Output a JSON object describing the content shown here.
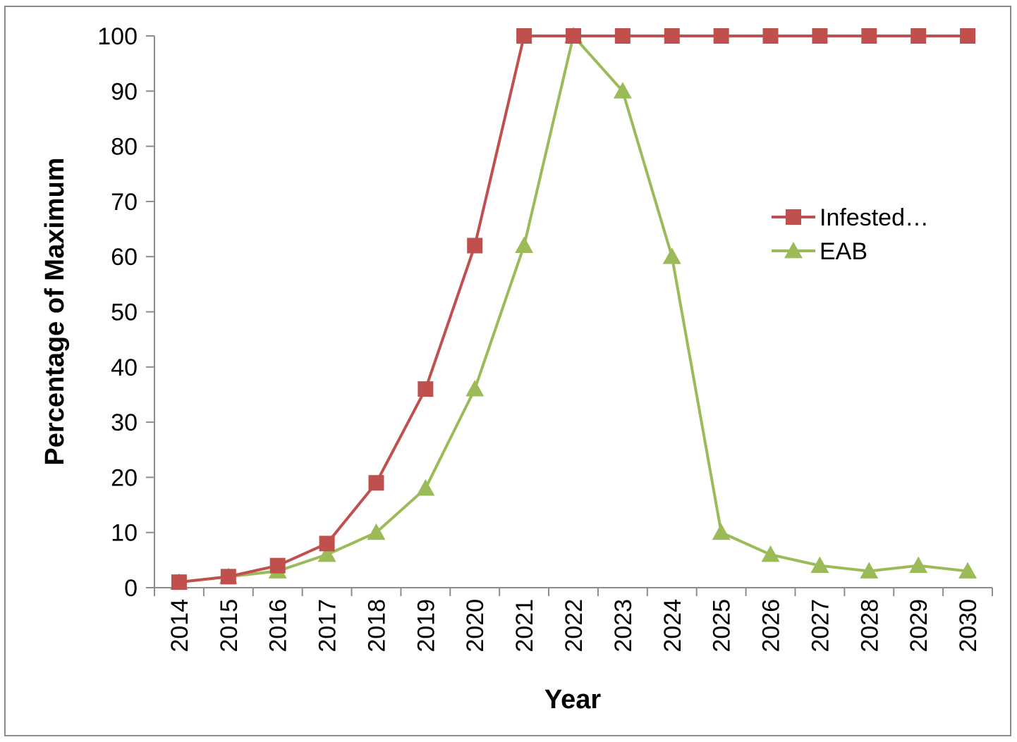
{
  "chart_data": {
    "type": "line",
    "title": "",
    "xlabel": "Year",
    "ylabel": "Percentage of Maximum",
    "ylim": [
      0,
      100
    ],
    "yticks": [
      0,
      10,
      20,
      30,
      40,
      50,
      60,
      70,
      80,
      90,
      100
    ],
    "categories": [
      "2014",
      "2015",
      "2016",
      "2017",
      "2018",
      "2019",
      "2020",
      "2021",
      "2022",
      "2023",
      "2024",
      "2025",
      "2026",
      "2027",
      "2028",
      "2029",
      "2030"
    ],
    "grid": false,
    "legend_position": "right",
    "series": [
      {
        "name": "Infested…",
        "color": "#c0504d",
        "marker": "square",
        "values": [
          1,
          2,
          4,
          8,
          19,
          36,
          62,
          100,
          100,
          100,
          100,
          100,
          100,
          100,
          100,
          100,
          100
        ]
      },
      {
        "name": "EAB",
        "color": "#9bbb59",
        "marker": "triangle",
        "values": [
          1,
          2,
          3,
          6,
          10,
          18,
          36,
          62,
          100,
          90,
          60,
          10,
          6,
          4,
          3,
          4,
          3
        ]
      }
    ]
  }
}
